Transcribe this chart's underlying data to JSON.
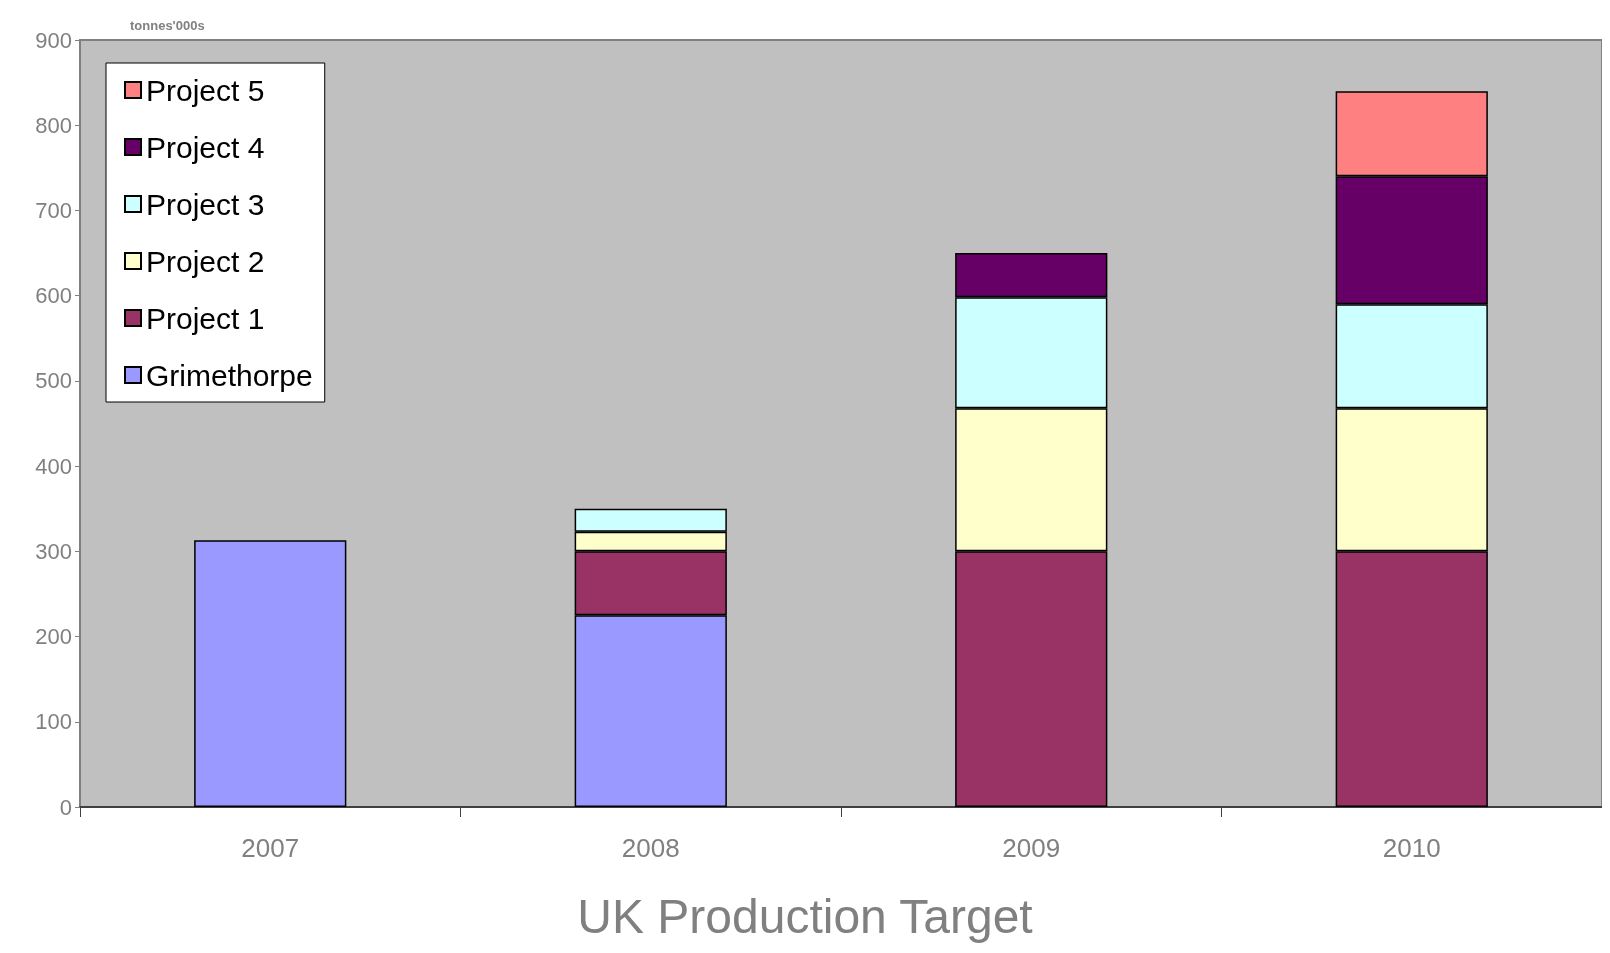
{
  "chart_data": {
    "type": "bar",
    "title": "UK Production Target",
    "ylabel": "tonnes'000s",
    "categories": [
      "2007",
      "2008",
      "2009",
      "2010"
    ],
    "stacked": true,
    "ylim": [
      0,
      900
    ],
    "yticks": [
      0,
      100,
      200,
      300,
      400,
      500,
      600,
      700,
      800,
      900
    ],
    "grid": false,
    "legend": "top left",
    "series": [
      {
        "name": "Grimethorpe",
        "color": "#9999ff",
        "values": [
          313,
          225,
          null,
          null
        ]
      },
      {
        "name": "Project 1",
        "color": "#993366",
        "values": [
          null,
          75,
          300,
          300
        ]
      },
      {
        "name": "Project 2",
        "color": "#ffffcc",
        "values": [
          null,
          23,
          168,
          168
        ]
      },
      {
        "name": "Project 3",
        "color": "#ccffff",
        "values": [
          null,
          27,
          130,
          122
        ]
      },
      {
        "name": "Project 4",
        "color": "#660066",
        "values": [
          null,
          null,
          52,
          150
        ]
      },
      {
        "name": "Project 5",
        "color": "#ff8080",
        "values": [
          null,
          null,
          null,
          100
        ]
      }
    ]
  }
}
